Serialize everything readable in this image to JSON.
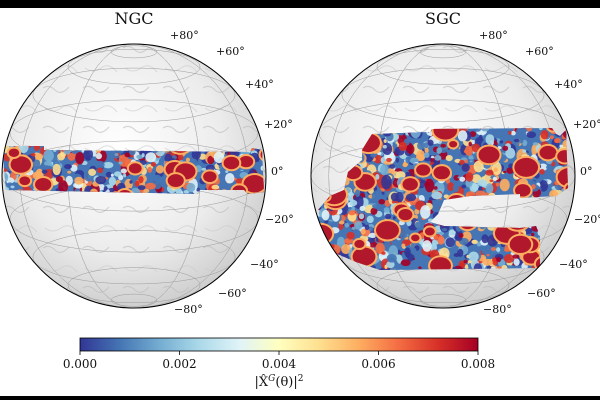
{
  "panels": [
    {
      "title": "NGC",
      "lat_labels": [
        "+80°",
        "+60°",
        "+40°",
        "+20°",
        "0°",
        "−20°",
        "−40°",
        "−60°",
        "−80°"
      ]
    },
    {
      "title": "SGC",
      "lat_labels": [
        "+80°",
        "+60°",
        "+40°",
        "+20°",
        "0°",
        "−20°",
        "−40°",
        "−60°",
        "−80°"
      ]
    }
  ],
  "colorbar": {
    "ticks": [
      "0.000",
      "0.002",
      "0.004",
      "0.006",
      "0.008"
    ],
    "label": "|X̂G(θ)|²",
    "label_parts": {
      "base": "|X̂",
      "sup": "G",
      "rest": "(θ)|",
      "exp": "2"
    },
    "colormap": [
      "#313695",
      "#4575b4",
      "#74add1",
      "#abd9e9",
      "#e0f3f8",
      "#ffffbf",
      "#fee090",
      "#fdae61",
      "#f46d43",
      "#d73027",
      "#a50026"
    ]
  }
}
